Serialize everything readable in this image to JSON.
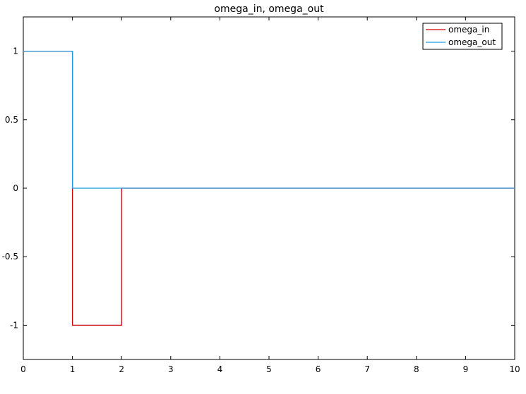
{
  "chart_data": {
    "type": "line",
    "title": "omega_in, omega_out",
    "xlabel": "",
    "ylabel": "",
    "xlim": [
      0,
      10
    ],
    "ylim": [
      -1.25,
      1.25
    ],
    "xticks": [
      0,
      1,
      2,
      3,
      4,
      5,
      6,
      7,
      8,
      9,
      10
    ],
    "xtick_labels": [
      "0",
      "1",
      "2",
      "3",
      "4",
      "5",
      "6",
      "7",
      "8",
      "9",
      "10"
    ],
    "yticks": [
      1,
      0.5,
      0,
      -0.5,
      -1
    ],
    "ytick_labels": [
      "1",
      "0.5",
      "0",
      "-0.5",
      "-1"
    ],
    "grid": false,
    "legend_position": "top-right",
    "series": [
      {
        "name": "omega_in",
        "color": "#cc0000",
        "x": [
          0,
          1,
          1,
          2,
          2,
          10
        ],
        "y": [
          1,
          1,
          -1,
          -1,
          0,
          0
        ]
      },
      {
        "name": "omega_out",
        "color": "#1a9ee0",
        "x": [
          0,
          1,
          1,
          10
        ],
        "y": [
          1,
          1,
          0,
          0
        ]
      }
    ]
  }
}
